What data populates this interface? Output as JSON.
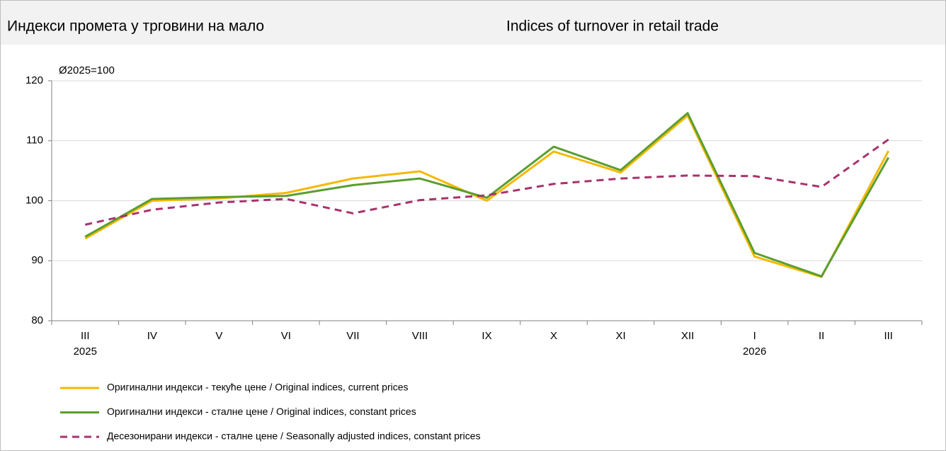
{
  "chart_data": {
    "type": "line",
    "title": "Индекси промета у трговини на мало",
    "title_en": "Indices of turnover in retail trade",
    "y_label": "Ø2025=100",
    "categories": [
      "III",
      "IV",
      "V",
      "VI",
      "VII",
      "VIII",
      "IX",
      "X",
      "XI",
      "XII",
      "I",
      "II",
      "III"
    ],
    "years": [
      "2025",
      null,
      null,
      null,
      null,
      null,
      null,
      null,
      null,
      null,
      "2026",
      null,
      null
    ],
    "series": [
      {
        "name": "Оригинални индекси - текуће цене / Original indices, current prices",
        "color": "#f5b800",
        "dashed": false,
        "values": [
          93.7,
          100.0,
          100.4,
          101.3,
          103.7,
          104.9,
          100.0,
          108.2,
          104.7,
          114.2,
          90.7,
          87.3,
          108.3
        ]
      },
      {
        "name": "Оригинални индекси - сталне цене / Original indices, constant prices",
        "color": "#5a9e2f",
        "dashed": false,
        "values": [
          94.0,
          100.3,
          100.6,
          100.8,
          102.6,
          103.7,
          100.5,
          109.0,
          105.1,
          114.6,
          91.3,
          87.4,
          107.2
        ]
      },
      {
        "name": "Десезонирани индекси - сталне цене / Seasonally adjusted indices, constant prices",
        "color": "#a8336d",
        "dashed": true,
        "values": [
          96.0,
          98.5,
          99.7,
          100.3,
          97.9,
          100.1,
          100.9,
          102.8,
          103.7,
          104.2,
          104.1,
          102.3,
          110.2
        ]
      }
    ],
    "ylim": [
      80,
      120
    ],
    "yticks": [
      80,
      90,
      100,
      110,
      120
    ],
    "grid": true
  }
}
